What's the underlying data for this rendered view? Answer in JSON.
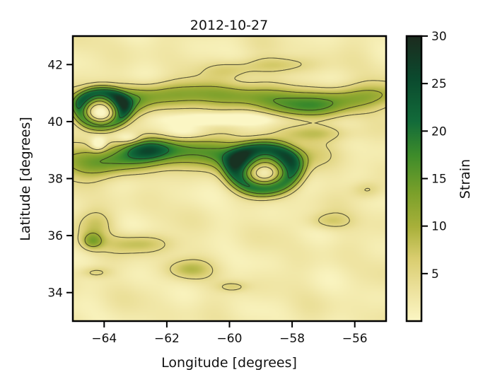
{
  "chart_data": {
    "type": "heatmap",
    "title": "2012-10-27",
    "xlabel": "Longitude [degrees]",
    "ylabel": "Latitude [degrees]",
    "colorbar_label": "Strain",
    "xlim": [
      -65,
      -55
    ],
    "ylim": [
      33,
      43
    ],
    "xticks": [
      -64,
      -62,
      -60,
      -58,
      -56
    ],
    "yticks": [
      34,
      36,
      38,
      40,
      42
    ],
    "colorbar_range": [
      0,
      30
    ],
    "colorbar_ticks": [
      5,
      10,
      15,
      20,
      25,
      30
    ],
    "contour_levels": [
      5,
      10,
      15,
      20
    ],
    "colormap": [
      "#fbf6c4",
      "#eee3a0",
      "#d9cd6f",
      "#a8b03a",
      "#7aa02a",
      "#3e8c2a",
      "#126b3a",
      "#0b4a2e",
      "#1c2b1e"
    ],
    "grid": false,
    "features": [
      {
        "name": "northern band",
        "lon": [
          -65,
          -55
        ],
        "lat": 40.9,
        "peak": 16
      },
      {
        "name": "central band",
        "lon": [
          -65,
          -58
        ],
        "lat": 38.7,
        "peak": 22
      },
      {
        "name": "west ring",
        "lon": -64.1,
        "lat": 40.5,
        "peak": 20
      },
      {
        "name": "central ring",
        "lon": -58.9,
        "lat": 38.2,
        "peak": 22
      },
      {
        "name": "southwest patch",
        "lon": -64.4,
        "lat": 35.8,
        "peak": 14
      }
    ]
  }
}
